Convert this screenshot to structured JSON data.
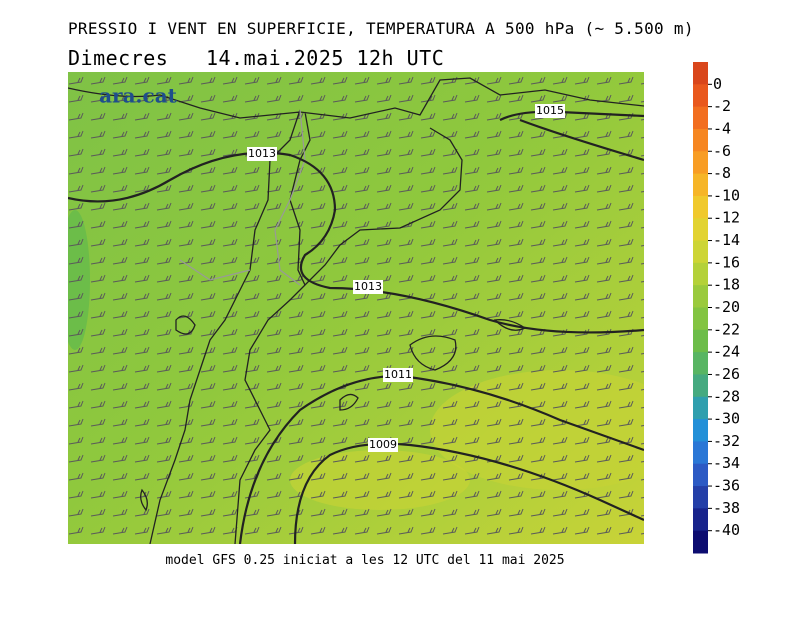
{
  "header": {
    "title": "PRESSIO I VENT EN SUPERFICIE, TEMPERATURA A 500 hPa (~ 5.500 m)",
    "date": "Dimecres   14.mai.2025 12h UTC"
  },
  "logo": "ara.cat",
  "map": {
    "isobar_labels": [
      "1015",
      "1013",
      "1013",
      "1011",
      "1009"
    ]
  },
  "colorbar": {
    "lim": [
      2,
      -42
    ],
    "ticks": [
      0,
      -2,
      -4,
      -6,
      -8,
      -10,
      -12,
      -14,
      -16,
      -18,
      -20,
      -22,
      -24,
      -26,
      -28,
      -30,
      -32,
      -34,
      -36,
      -38,
      -40
    ],
    "colors": [
      "#d9461b",
      "#e9581d",
      "#f26e1f",
      "#f68621",
      "#f89d24",
      "#f6b527",
      "#f0c92c",
      "#e2d331",
      "#cdd535",
      "#b4d139",
      "#9aca3d",
      "#83c441",
      "#6cbd49",
      "#58b563",
      "#45aa80",
      "#2f9fae",
      "#2390d8",
      "#2a77d6",
      "#2c5ac4",
      "#243fa8",
      "#18248c",
      "#0c0c70"
    ]
  },
  "footer": "model GFS 0.25 iniciat a les 12 UTC del 11 mai 2025"
}
